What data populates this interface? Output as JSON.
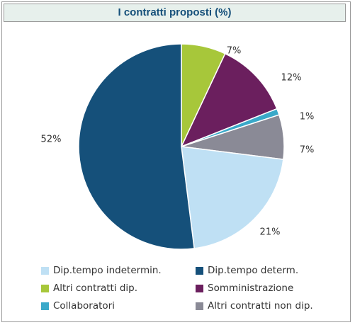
{
  "chart_data": {
    "type": "pie",
    "title": "I contratti proposti (%)",
    "categories": [
      "Dip.tempo indetermin.",
      "Dip.tempo determ.",
      "Altri contratti dip.",
      "Somministrazione",
      "Collaboratori",
      "Altri contratti non dip."
    ],
    "values": [
      21,
      52,
      7,
      12,
      1,
      7
    ],
    "value_labels": [
      "21%",
      "52%",
      "7%",
      "12%",
      "1%",
      "7%"
    ],
    "colors": [
      "#bfe0f4",
      "#15507a",
      "#a7c73a",
      "#6b1f5e",
      "#3aa9c9",
      "#8a8a96"
    ],
    "legend_position": "bottom"
  }
}
